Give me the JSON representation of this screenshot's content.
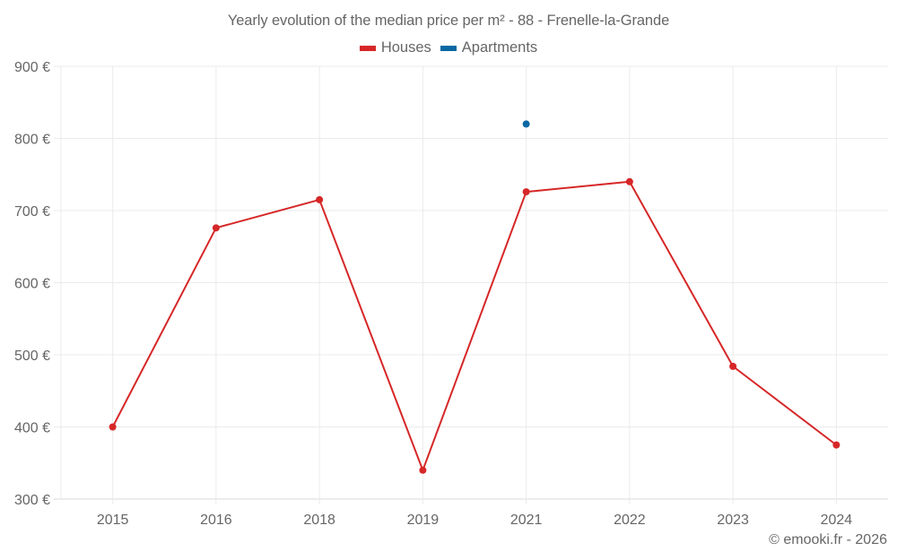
{
  "title": "Yearly evolution of the median price per m² - 88 - Frenelle-la-Grande",
  "legend": [
    {
      "label": "Houses",
      "color": "#d62728"
    },
    {
      "label": "Apartments",
      "color": "#0868a4"
    }
  ],
  "credit": "© emooki.fr - 2026",
  "colors": {
    "houses": "#d62728",
    "apartments": "#0868a4",
    "grid": "#ebebeb",
    "axis": "#d9d9d9",
    "text": "#666666"
  },
  "chart_data": {
    "type": "line",
    "title": "Yearly evolution of the median price per m² - 88 - Frenelle-la-Grande",
    "xlabel": "",
    "ylabel": "",
    "categories": [
      "2015",
      "2016",
      "2018",
      "2019",
      "2021",
      "2022",
      "2023",
      "2024"
    ],
    "series": [
      {
        "name": "Houses",
        "color": "#d62728",
        "values": [
          400,
          676,
          715,
          340,
          726,
          740,
          484,
          375
        ]
      },
      {
        "name": "Apartments",
        "color": "#0868a4",
        "values": [
          null,
          null,
          null,
          null,
          820,
          null,
          null,
          null
        ]
      }
    ],
    "yticks": [
      "300 €",
      "400 €",
      "500 €",
      "600 €",
      "700 €",
      "800 €",
      "900 €"
    ],
    "ylim": [
      300,
      900
    ],
    "grid": true,
    "legend_position": "top"
  }
}
